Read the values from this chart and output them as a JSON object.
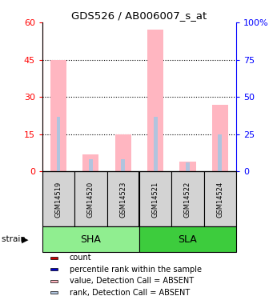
{
  "title": "GDS526 / AB006007_s_at",
  "samples": [
    "GSM14519",
    "GSM14520",
    "GSM14523",
    "GSM14521",
    "GSM14522",
    "GSM14524"
  ],
  "groups": [
    {
      "name": "SHA",
      "color": "#90EE90",
      "span": [
        0,
        3
      ]
    },
    {
      "name": "SLA",
      "color": "#3DCC3D",
      "span": [
        3,
        6
      ]
    }
  ],
  "value_absent": [
    45,
    7,
    15,
    57,
    4,
    27
  ],
  "rank_absent": [
    22,
    5,
    5,
    22,
    3.5,
    15
  ],
  "left_ylim": [
    0,
    60
  ],
  "right_ylim": [
    0,
    100
  ],
  "left_yticks": [
    0,
    15,
    30,
    45,
    60
  ],
  "right_yticks": [
    0,
    25,
    50,
    75,
    100
  ],
  "right_yticklabels": [
    "0",
    "25",
    "50",
    "75",
    "100%"
  ],
  "left_yticklabels": [
    "0",
    "15",
    "30",
    "45",
    "60"
  ],
  "color_value_absent": "#FFB6C1",
  "color_rank_absent": "#B0C4DE",
  "color_count": "#CC0000",
  "color_percentile": "#0000CC",
  "gsm_bg": "#D3D3D3",
  "grid_lines": [
    15,
    30,
    45
  ],
  "legend_items": [
    {
      "color": "#CC0000",
      "label": "count"
    },
    {
      "color": "#0000CC",
      "label": "percentile rank within the sample"
    },
    {
      "color": "#FFB6C1",
      "label": "value, Detection Call = ABSENT"
    },
    {
      "color": "#B0C4DE",
      "label": "rank, Detection Call = ABSENT"
    }
  ]
}
